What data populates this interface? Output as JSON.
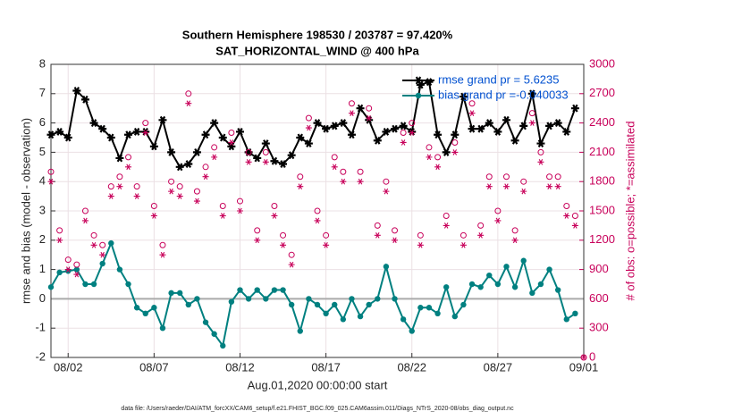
{
  "chart_data": {
    "type": "line",
    "title": "Southern Hemisphere 198530 / 203787 = 97.420%",
    "subtitle": "SAT_HORIZONTAL_WIND @ 400 hPa",
    "xlabel": "Aug.01,2020 00:00:00 start",
    "ylabel": "rmse and bias (model - observation)",
    "y2label": "# of obs: o=possible; *=assimilated",
    "footnote": "data file: /Users/raeder/DAI/ATM_forcXX/CAM6_setup/f.e21.FHIST_BGC.f09_025.CAM6assim.011/Diags_NTrS_2020-08/obs_diag_output.nc",
    "xlim": [
      0,
      31
    ],
    "xticks": [
      {
        "value": 1,
        "label": "08/02"
      },
      {
        "value": 6,
        "label": "08/07"
      },
      {
        "value": 11,
        "label": "08/12"
      },
      {
        "value": 16,
        "label": "08/17"
      },
      {
        "value": 21,
        "label": "08/22"
      },
      {
        "value": 26,
        "label": "08/27"
      },
      {
        "value": 31,
        "label": "09/01"
      }
    ],
    "ylim": [
      -2,
      8
    ],
    "yticks": [
      -2,
      -1,
      0,
      1,
      2,
      3,
      4,
      5,
      6,
      7,
      8
    ],
    "y2lim": [
      0,
      3000
    ],
    "y2ticks": [
      0,
      300,
      600,
      900,
      1200,
      1500,
      1800,
      2100,
      2400,
      2700,
      3000
    ],
    "grid": true,
    "legend": "northeast",
    "x": [
      0,
      0.5,
      1,
      1.5,
      2,
      2.5,
      3,
      3.5,
      4,
      4.5,
      5,
      5.5,
      6,
      6.5,
      7,
      7.5,
      8,
      8.5,
      9,
      9.5,
      10,
      10.5,
      11,
      11.5,
      12,
      12.5,
      13,
      13.5,
      14,
      14.5,
      15,
      15.5,
      16,
      16.5,
      17,
      17.5,
      18,
      18.5,
      19,
      19.5,
      20,
      20.5,
      21,
      21.5,
      22,
      22.5,
      23,
      23.5,
      24,
      24.5,
      25,
      25.5,
      26,
      26.5,
      27,
      27.5,
      28,
      28.5,
      29,
      29.5,
      30,
      30.5,
      31
    ],
    "series": [
      {
        "name": "rmse grand pr = 5.6235",
        "color": "#000000",
        "marker": "asterisk",
        "line": true,
        "values": [
          5.6,
          5.7,
          5.5,
          7.1,
          6.8,
          6.0,
          5.8,
          5.5,
          4.8,
          5.6,
          5.7,
          5.7,
          5.2,
          6.1,
          5.0,
          4.5,
          4.6,
          5.0,
          5.6,
          6.0,
          5.5,
          5.2,
          5.7,
          5.0,
          4.8,
          5.3,
          4.7,
          4.6,
          4.9,
          5.5,
          5.3,
          6.0,
          5.8,
          5.9,
          6.0,
          5.6,
          6.5,
          6.1,
          5.4,
          5.7,
          5.8,
          5.9,
          5.7,
          7.3,
          7.4,
          5.6,
          5.0,
          5.6,
          6.9,
          5.8,
          5.8,
          6.0,
          5.7,
          6.1,
          5.4,
          5.9,
          7.0,
          5.3,
          5.9,
          6.0,
          5.7,
          6.5,
          null
        ]
      },
      {
        "name": "bias grand pr =-0.040033",
        "color": "#008080",
        "marker": "circle-filled",
        "line": true,
        "values": [
          0.4,
          0.9,
          0.95,
          1.0,
          0.5,
          0.5,
          1.2,
          1.9,
          1.0,
          0.5,
          -0.3,
          -0.5,
          -0.3,
          -1.0,
          0.2,
          0.2,
          -0.2,
          0.0,
          -0.8,
          -1.2,
          -1.6,
          -0.1,
          0.3,
          0.0,
          0.3,
          0.0,
          0.3,
          0.3,
          -0.2,
          -1.1,
          0.0,
          -0.2,
          -0.5,
          -0.2,
          -0.7,
          0.0,
          -0.6,
          -0.2,
          0.0,
          1.1,
          0.0,
          -0.7,
          -1.1,
          -0.3,
          -0.3,
          -0.5,
          0.4,
          -0.6,
          -0.2,
          0.5,
          0.4,
          0.8,
          0.5,
          1.1,
          0.4,
          1.3,
          0.2,
          0.5,
          1.0,
          0.3,
          -0.7,
          -0.5,
          null
        ]
      },
      {
        "color": "#c8005a",
        "marker": "circle",
        "line": false,
        "axis": "y2",
        "values": [
          1900,
          1300,
          1000,
          950,
          1500,
          1250,
          1150,
          1750,
          1850,
          2050,
          1750,
          2400,
          1550,
          1150,
          1800,
          1750,
          2700,
          1700,
          1950,
          2150,
          1550,
          2300,
          1600,
          2100,
          1300,
          2100,
          1550,
          1250,
          1050,
          1850,
          2450,
          1500,
          1250,
          2050,
          1900,
          2600,
          1900,
          2550,
          1350,
          1800,
          1300,
          2300,
          2400,
          1250,
          2150,
          2050,
          1450,
          2200,
          1250,
          2600,
          1350,
          1850,
          1500,
          1850,
          1300,
          1800,
          2500,
          2100,
          1850,
          1850,
          1550,
          1450,
          0
        ]
      },
      {
        "color": "#c8005a",
        "marker": "asterisk",
        "line": false,
        "axis": "y2",
        "values": [
          1800,
          1200,
          900,
          850,
          1400,
          1150,
          1050,
          1650,
          1750,
          1950,
          1650,
          2300,
          1450,
          1050,
          1700,
          1650,
          2600,
          1600,
          1850,
          2050,
          1450,
          2200,
          1500,
          2000,
          1200,
          2000,
          1450,
          1150,
          950,
          1750,
          2350,
          1400,
          1150,
          1950,
          1800,
          2500,
          1800,
          2450,
          1250,
          1700,
          1200,
          2200,
          2300,
          1150,
          2050,
          1950,
          1350,
          2100,
          1150,
          2500,
          1250,
          1750,
          1400,
          1750,
          1200,
          1700,
          2400,
          2000,
          1750,
          1750,
          1450,
          1350,
          0
        ]
      }
    ]
  }
}
